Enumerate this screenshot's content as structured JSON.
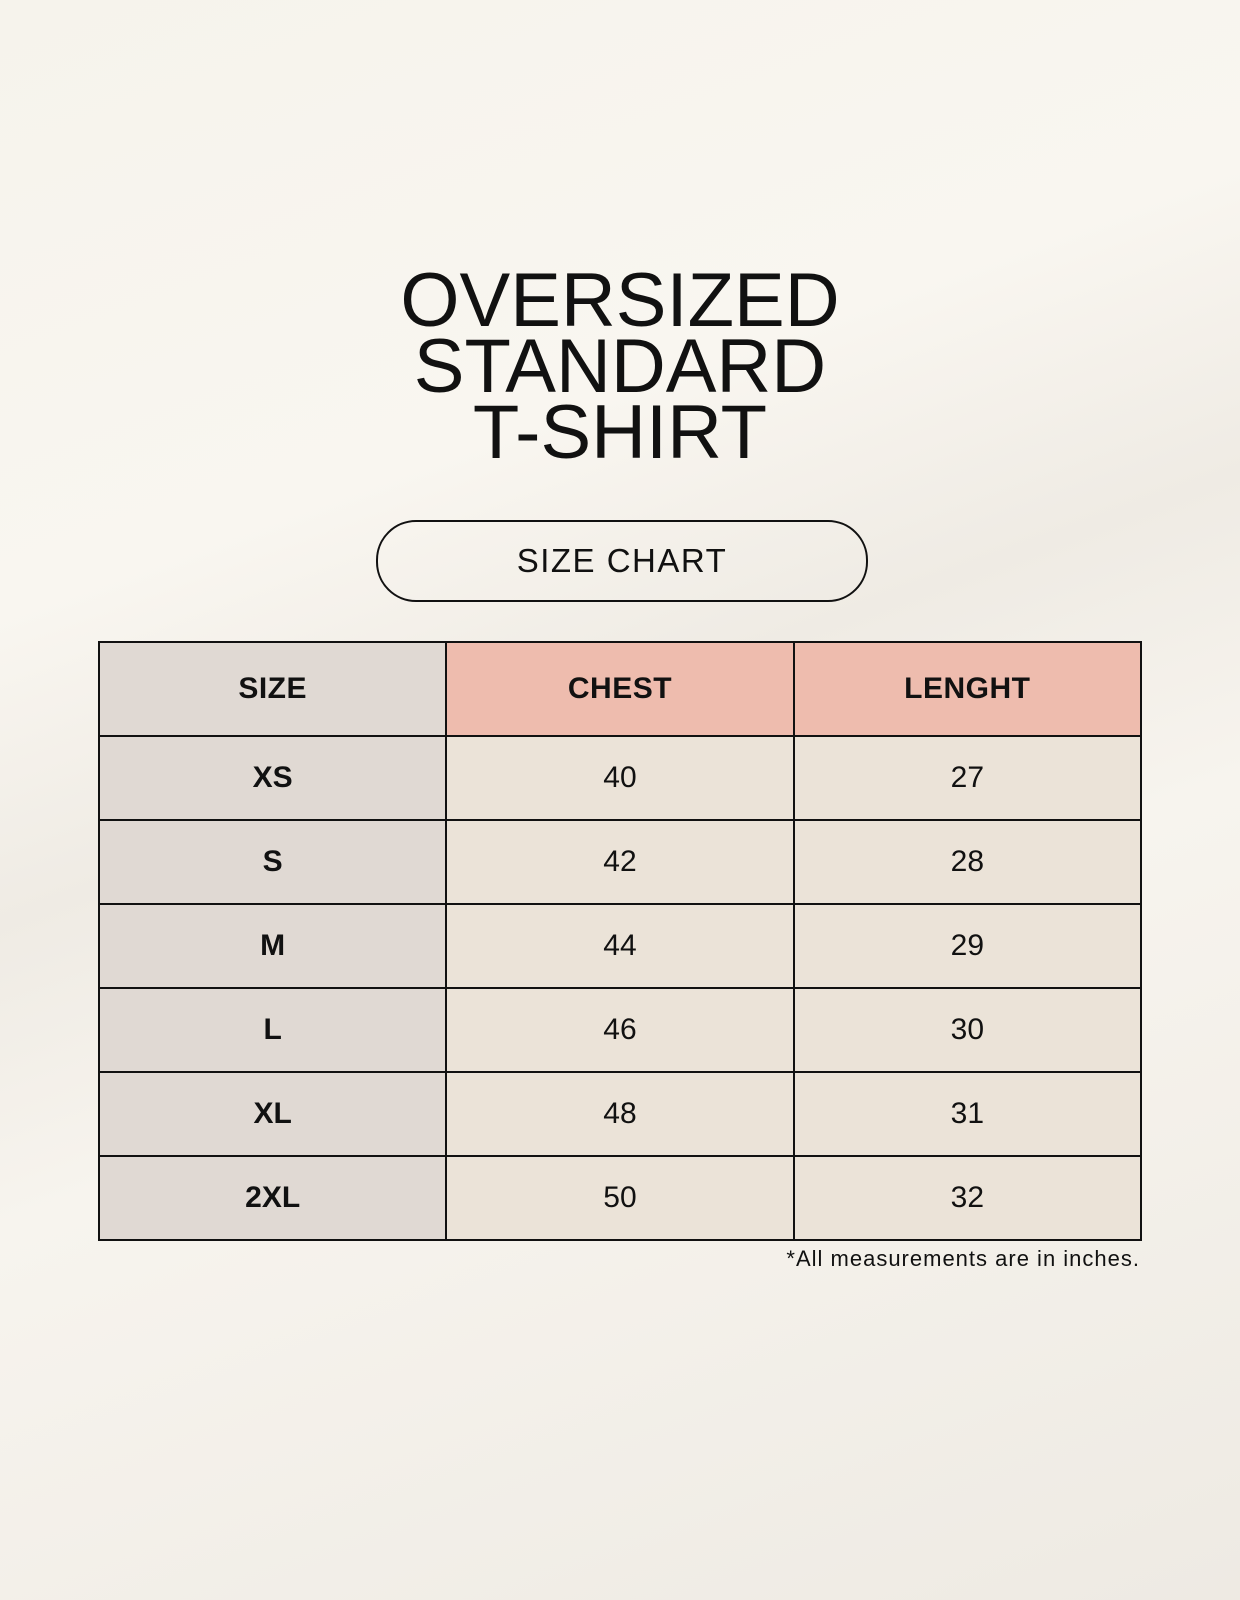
{
  "title": {
    "line1": "OVERSIZED",
    "line2": "STANDARD",
    "line3": "T-SHIRT"
  },
  "badge": "SIZE CHART",
  "table": {
    "headers": [
      "SIZE",
      "CHEST",
      "LENGHT"
    ],
    "rows": [
      [
        "XS",
        "40",
        "27"
      ],
      [
        "S",
        "42",
        "28"
      ],
      [
        "M",
        "44",
        "29"
      ],
      [
        "L",
        "46",
        "30"
      ],
      [
        "XL",
        "48",
        "31"
      ],
      [
        "2XL",
        "50",
        "32"
      ]
    ]
  },
  "footnote": "*All measurements are in inches.",
  "colors": {
    "background": "#f7f4ee",
    "size_column": "#e0d9d3",
    "header_accent": "#eebcae",
    "cell": "#ebe3d8"
  }
}
